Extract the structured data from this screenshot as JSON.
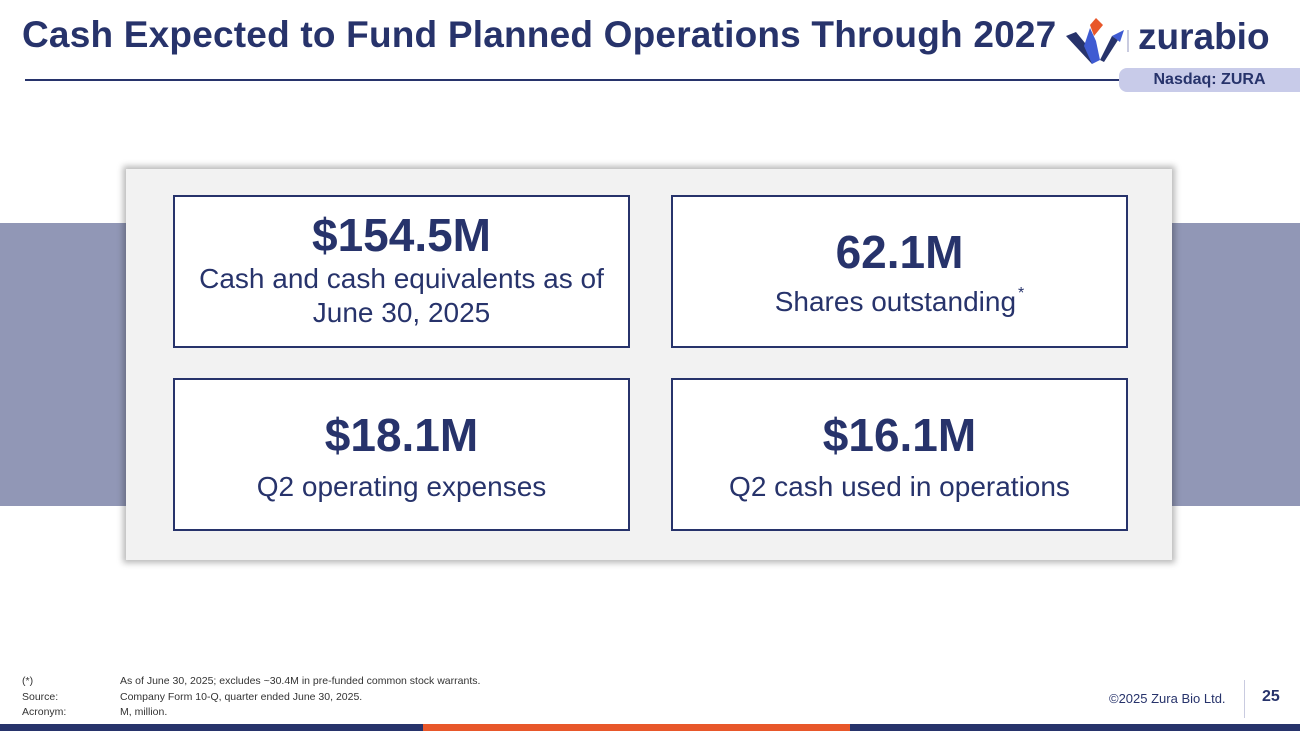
{
  "header": {
    "title": "Cash Expected to Fund Planned Operations Through 2027",
    "logo_text": "zurabio",
    "ticker": "Nasdaq: ZURA",
    "logo_icon": "zurabio-flame-logo-icon"
  },
  "cards": [
    {
      "value": "$154.5M",
      "label": "Cash and cash equivalents as of June 30, 2025"
    },
    {
      "value": "62.1M",
      "label": "Shares outstanding",
      "footnote_mark": "*"
    },
    {
      "value": "$18.1M",
      "label": "Q2 operating expenses"
    },
    {
      "value": "$16.1M",
      "label": "Q2 cash used in operations"
    }
  ],
  "footnotes": [
    {
      "key": "(*)",
      "text": "As of June 30, 2025; excludes ~30.4M in pre-funded common stock warrants."
    },
    {
      "key": "Source:",
      "text": "Company Form 10-Q, quarter ended June 30, 2025."
    },
    {
      "key": "Acronym:",
      "text": "M, million."
    }
  ],
  "footer": {
    "copyright": "©2025 Zura Bio Ltd.",
    "page_number": "25"
  },
  "colors": {
    "navy": "#27336b",
    "orange": "#e8572a",
    "band": "#9197b6",
    "ticker_bg": "#c8cbe9"
  }
}
